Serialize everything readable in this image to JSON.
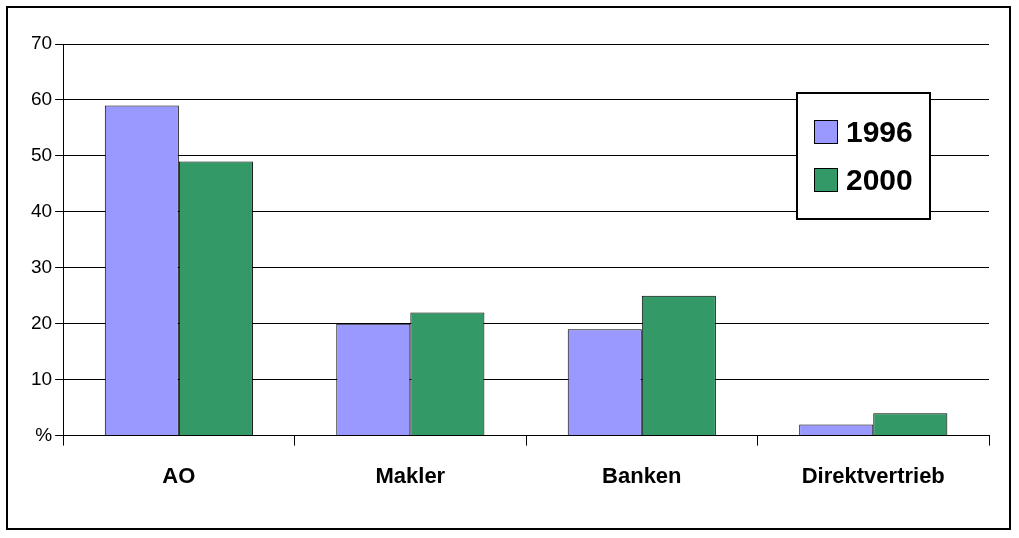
{
  "chart_data": {
    "type": "bar",
    "categories": [
      "AO",
      "Makler",
      "Banken",
      "Direktvertrieb"
    ],
    "series": [
      {
        "name": "1996",
        "color": "#9999ff",
        "values": [
          59,
          20,
          19,
          2
        ]
      },
      {
        "name": "2000",
        "color": "#339966",
        "values": [
          49,
          22,
          25,
          4
        ]
      }
    ],
    "ylim": [
      0,
      70
    ],
    "yticks": [
      {
        "value": 0,
        "label": "%"
      },
      10,
      20,
      30,
      40,
      50,
      60,
      70
    ],
    "grid": "y",
    "legend": "top right"
  }
}
